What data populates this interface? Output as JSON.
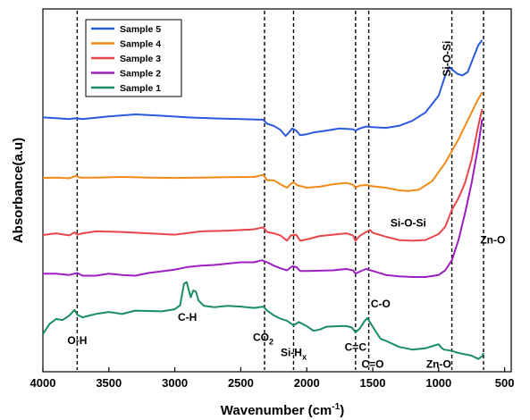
{
  "chart_data": {
    "type": "line",
    "xlabel_main": "Wavenumber (cm",
    "xlabel_sup": "-1",
    "xlabel_end": ")",
    "ylabel": "Absorbance(a.u)",
    "xlim": [
      4000,
      450
    ],
    "ylim": [
      0,
      100
    ],
    "x_ticks": [
      "4000",
      "3500",
      "3000",
      "2500",
      "2000",
      "1500",
      "1000",
      "500"
    ],
    "x_tick_values": [
      4000,
      3500,
      3000,
      2500,
      2000,
      1500,
      1000,
      500
    ],
    "grid": false,
    "legend_position": "top-left",
    "reference_lines": [
      3740,
      2320,
      2100,
      1630,
      1530,
      900,
      660
    ],
    "series": [
      {
        "name": "Sample 5",
        "color": "#2B59E0",
        "points": [
          [
            4000,
            72.5
          ],
          [
            3900,
            72.3
          ],
          [
            3800,
            72.0
          ],
          [
            3750,
            72.3
          ],
          [
            3700,
            72.0
          ],
          [
            3500,
            72.8
          ],
          [
            3300,
            73.4
          ],
          [
            3100,
            73.0
          ],
          [
            2900,
            72.5
          ],
          [
            2700,
            72.2
          ],
          [
            2500,
            72.0
          ],
          [
            2330,
            71.8
          ],
          [
            2300,
            70.6
          ],
          [
            2250,
            70.0
          ],
          [
            2200,
            68.8
          ],
          [
            2160,
            67.0
          ],
          [
            2140,
            67.8
          ],
          [
            2110,
            69.2
          ],
          [
            2080,
            68.6
          ],
          [
            2050,
            67.2
          ],
          [
            2000,
            67.5
          ],
          [
            1950,
            68.0
          ],
          [
            1850,
            68.6
          ],
          [
            1750,
            69.2
          ],
          [
            1650,
            69.0
          ],
          [
            1630,
            68.6
          ],
          [
            1600,
            69.2
          ],
          [
            1550,
            69.8
          ],
          [
            1500,
            69.6
          ],
          [
            1400,
            69.4
          ],
          [
            1300,
            70.0
          ],
          [
            1200,
            71.5
          ],
          [
            1100,
            74.0
          ],
          [
            1000,
            79.0
          ],
          [
            950,
            85.0
          ],
          [
            920,
            87.5
          ],
          [
            890,
            86.5
          ],
          [
            860,
            85.5
          ],
          [
            820,
            85.0
          ],
          [
            780,
            86.0
          ],
          [
            740,
            90.0
          ],
          [
            700,
            94.0
          ],
          [
            670,
            95.5
          ]
        ]
      },
      {
        "name": "Sample 4",
        "color": "#F28A17",
        "points": [
          [
            4000,
            54.5
          ],
          [
            3900,
            54.6
          ],
          [
            3800,
            54.4
          ],
          [
            3750,
            55.1
          ],
          [
            3720,
            54.6
          ],
          [
            3600,
            54.6
          ],
          [
            3400,
            54.8
          ],
          [
            3200,
            54.6
          ],
          [
            3000,
            54.5
          ],
          [
            2800,
            54.6
          ],
          [
            2600,
            54.7
          ],
          [
            2400,
            54.8
          ],
          [
            2330,
            55.4
          ],
          [
            2300,
            53.8
          ],
          [
            2250,
            53.8
          ],
          [
            2200,
            52.6
          ],
          [
            2150,
            51.6
          ],
          [
            2120,
            52.7
          ],
          [
            2100,
            53.2
          ],
          [
            2070,
            52.3
          ],
          [
            2000,
            51.6
          ],
          [
            1900,
            51.9
          ],
          [
            1800,
            52.6
          ],
          [
            1700,
            53.0
          ],
          [
            1650,
            52.5
          ],
          [
            1630,
            51.6
          ],
          [
            1600,
            52.2
          ],
          [
            1550,
            52.4
          ],
          [
            1500,
            52.0
          ],
          [
            1400,
            51.6
          ],
          [
            1300,
            50.8
          ],
          [
            1230,
            50.6
          ],
          [
            1150,
            51.0
          ],
          [
            1050,
            53.5
          ],
          [
            950,
            59.0
          ],
          [
            900,
            62.5
          ],
          [
            850,
            66.0
          ],
          [
            800,
            70.0
          ],
          [
            750,
            74.0
          ],
          [
            700,
            78.0
          ],
          [
            670,
            80.0
          ]
        ]
      },
      {
        "name": "Sample 3",
        "color": "#E8464A",
        "points": [
          [
            4000,
            37.5
          ],
          [
            3900,
            38.0
          ],
          [
            3800,
            37.4
          ],
          [
            3760,
            38.3
          ],
          [
            3740,
            37.6
          ],
          [
            3700,
            38.0
          ],
          [
            3600,
            38.6
          ],
          [
            3400,
            38.4
          ],
          [
            3200,
            38.0
          ],
          [
            3000,
            37.6
          ],
          [
            2800,
            38.6
          ],
          [
            2600,
            38.8
          ],
          [
            2400,
            39.2
          ],
          [
            2330,
            39.8
          ],
          [
            2300,
            38.4
          ],
          [
            2250,
            38.0
          ],
          [
            2200,
            37.4
          ],
          [
            2150,
            35.8
          ],
          [
            2120,
            37.4
          ],
          [
            2080,
            37.6
          ],
          [
            2050,
            35.8
          ],
          [
            2000,
            36.2
          ],
          [
            1900,
            37.2
          ],
          [
            1800,
            37.6
          ],
          [
            1700,
            38.0
          ],
          [
            1650,
            37.4
          ],
          [
            1630,
            35.8
          ],
          [
            1600,
            37.2
          ],
          [
            1550,
            38.4
          ],
          [
            1520,
            39.0
          ],
          [
            1500,
            38.2
          ],
          [
            1400,
            37.0
          ],
          [
            1300,
            36.0
          ],
          [
            1200,
            35.8
          ],
          [
            1100,
            36.0
          ],
          [
            1000,
            37.8
          ],
          [
            950,
            40.0
          ],
          [
            900,
            45.0
          ],
          [
            850,
            48.5
          ],
          [
            800,
            53.0
          ],
          [
            750,
            60.0
          ],
          [
            700,
            70.0
          ],
          [
            670,
            75.0
          ]
        ]
      },
      {
        "name": "Sample 2",
        "color": "#9B1FBE",
        "points": [
          [
            4000,
            26.0
          ],
          [
            3900,
            26.0
          ],
          [
            3800,
            25.6
          ],
          [
            3740,
            26.2
          ],
          [
            3700,
            25.4
          ],
          [
            3600,
            25.4
          ],
          [
            3500,
            26.0
          ],
          [
            3400,
            25.6
          ],
          [
            3300,
            25.4
          ],
          [
            3200,
            26.2
          ],
          [
            3000,
            27.2
          ],
          [
            2900,
            28.0
          ],
          [
            2800,
            28.4
          ],
          [
            2700,
            28.6
          ],
          [
            2600,
            29.0
          ],
          [
            2500,
            29.4
          ],
          [
            2400,
            29.4
          ],
          [
            2340,
            30.0
          ],
          [
            2300,
            29.4
          ],
          [
            2250,
            28.4
          ],
          [
            2200,
            27.6
          ],
          [
            2150,
            27.0
          ],
          [
            2110,
            28.2
          ],
          [
            2080,
            28.0
          ],
          [
            2050,
            26.8
          ],
          [
            2000,
            26.8
          ],
          [
            1900,
            26.9
          ],
          [
            1800,
            27.0
          ],
          [
            1700,
            27.4
          ],
          [
            1650,
            27.0
          ],
          [
            1630,
            26.0
          ],
          [
            1600,
            26.6
          ],
          [
            1550,
            27.4
          ],
          [
            1500,
            26.8
          ],
          [
            1400,
            25.6
          ],
          [
            1300,
            25.2
          ],
          [
            1200,
            25.0
          ],
          [
            1100,
            25.0
          ],
          [
            1000,
            25.6
          ],
          [
            950,
            27.0
          ],
          [
            900,
            30.0
          ],
          [
            850,
            36.0
          ],
          [
            800,
            44.0
          ],
          [
            750,
            53.0
          ],
          [
            700,
            64.0
          ],
          [
            670,
            72.0
          ]
        ]
      },
      {
        "name": "Sample 1",
        "color": "#1A8E5F",
        "points": [
          [
            4000,
            8.0
          ],
          [
            3950,
            11.0
          ],
          [
            3900,
            12.5
          ],
          [
            3850,
            12.2
          ],
          [
            3800,
            13.5
          ],
          [
            3760,
            15.2
          ],
          [
            3740,
            13.8
          ],
          [
            3700,
            13.0
          ],
          [
            3600,
            14.0
          ],
          [
            3500,
            14.6
          ],
          [
            3400,
            14.0
          ],
          [
            3300,
            15.0
          ],
          [
            3100,
            14.8
          ],
          [
            3000,
            15.4
          ],
          [
            2960,
            16.6
          ],
          [
            2930,
            23.0
          ],
          [
            2910,
            23.5
          ],
          [
            2880,
            19.0
          ],
          [
            2860,
            21.0
          ],
          [
            2840,
            20.6
          ],
          [
            2820,
            18.0
          ],
          [
            2780,
            16.4
          ],
          [
            2700,
            16.0
          ],
          [
            2600,
            16.4
          ],
          [
            2500,
            16.2
          ],
          [
            2400,
            15.8
          ],
          [
            2330,
            16.2
          ],
          [
            2300,
            15.0
          ],
          [
            2250,
            13.6
          ],
          [
            2200,
            12.6
          ],
          [
            2150,
            12.0
          ],
          [
            2100,
            10.6
          ],
          [
            2060,
            11.6
          ],
          [
            2000,
            10.4
          ],
          [
            1950,
            9.0
          ],
          [
            1900,
            9.4
          ],
          [
            1850,
            10.2
          ],
          [
            1750,
            10.4
          ],
          [
            1700,
            10.4
          ],
          [
            1660,
            10.0
          ],
          [
            1630,
            8.6
          ],
          [
            1600,
            9.6
          ],
          [
            1560,
            12.0
          ],
          [
            1540,
            12.8
          ],
          [
            1520,
            11.4
          ],
          [
            1500,
            10.2
          ],
          [
            1470,
            8.4
          ],
          [
            1440,
            6.6
          ],
          [
            1400,
            6.0
          ],
          [
            1300,
            4.2
          ],
          [
            1200,
            3.4
          ],
          [
            1100,
            3.8
          ],
          [
            1050,
            4.4
          ],
          [
            1020,
            4.8
          ],
          [
            1000,
            5.0
          ],
          [
            980,
            4.0
          ],
          [
            960,
            3.4
          ],
          [
            900,
            3.0
          ],
          [
            850,
            2.4
          ],
          [
            800,
            2.0
          ],
          [
            750,
            1.6
          ],
          [
            700,
            0.6
          ],
          [
            670,
            1.4
          ],
          [
            660,
            2.4
          ]
        ]
      }
    ],
    "annotations": [
      {
        "label": "O-H",
        "x": 3740,
        "y": 5
      },
      {
        "label": "C-H",
        "x": 2905,
        "y": 12
      },
      {
        "label": "CO",
        "sub": "2",
        "x": 2330,
        "y": 6
      },
      {
        "label": "Si-H",
        "sub": "x",
        "x": 2100,
        "y": 1.5
      },
      {
        "label": "C=C",
        "x": 1630,
        "y": 3
      },
      {
        "label": "C=O",
        "x": 1500,
        "y": -2
      },
      {
        "label": "C-O",
        "x": 1440,
        "y": 16
      },
      {
        "label": "Zn-O",
        "x": 1000,
        "y": -2
      },
      {
        "label": "Si-O-Si",
        "x": 1230,
        "y": 40
      },
      {
        "label": "Zn-O",
        "x": 590,
        "y": 35
      },
      {
        "label": "Si-O-Si",
        "x": 910,
        "y": 90,
        "rotate": true
      }
    ]
  }
}
